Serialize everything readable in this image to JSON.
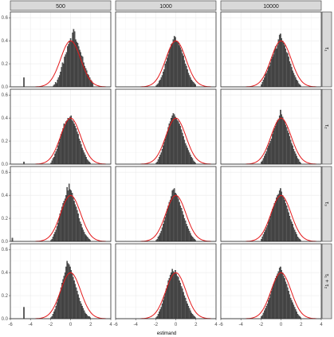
{
  "chart_data": {
    "type": "bar",
    "subtype": "faceted histogram with normal density overlay",
    "xlabel": "estimand",
    "ylabel": "",
    "col_facets": [
      "500",
      "1000",
      "10000"
    ],
    "row_facets": [
      "τ₁",
      "τ₂",
      "τ₃",
      "τ₁ + τ₂"
    ],
    "xlim": [
      -6,
      4
    ],
    "ylim": [
      0,
      0.65
    ],
    "x_ticks": [
      -6,
      -4,
      -2,
      0,
      2,
      4
    ],
    "y_ticks": [
      0.0,
      0.2,
      0.4,
      0.6
    ],
    "y_tick_labels": [
      "0.0",
      "0.2",
      "0.4",
      "0.6"
    ],
    "grid": true,
    "colors": {
      "bar_fill": "#595959",
      "bar_outline": "#1a1a1a",
      "density_curve": "#e41a1c",
      "strip_bg": "#d9d9d9",
      "panel_border": "#333333",
      "grid_major": "#ebebeb"
    },
    "density_overlay": {
      "mean": 0,
      "sd": 1
    },
    "panels": [
      {
        "row": 0,
        "col": 0,
        "x0": -1.75,
        "bw": 0.1,
        "values": [
          0.01,
          0.02,
          0.04,
          0.03,
          0.06,
          0.08,
          0.1,
          0.13,
          0.17,
          0.21,
          0.2,
          0.26,
          0.28,
          0.3,
          0.35,
          0.37,
          0.4,
          0.42,
          0.39,
          0.47,
          0.5,
          0.48,
          0.41,
          0.39,
          0.38,
          0.35,
          0.32,
          0.3,
          0.27,
          0.26,
          0.21,
          0.18,
          0.16,
          0.14,
          0.11,
          0.1,
          0.08,
          0.06,
          0.05,
          0.03
        ],
        "outliers": [
          {
            "x": -4.65,
            "y": 0.08
          }
        ]
      },
      {
        "row": 0,
        "col": 1,
        "x0": -2.0,
        "bw": 0.1,
        "values": [
          0.01,
          0.02,
          0.03,
          0.05,
          0.06,
          0.08,
          0.1,
          0.13,
          0.15,
          0.2,
          0.22,
          0.25,
          0.28,
          0.32,
          0.34,
          0.37,
          0.38,
          0.41,
          0.44,
          0.43,
          0.4,
          0.39,
          0.38,
          0.36,
          0.34,
          0.32,
          0.29,
          0.27,
          0.23,
          0.2,
          0.18,
          0.15,
          0.12,
          0.1,
          0.08,
          0.06,
          0.05,
          0.04,
          0.03,
          0.02
        ],
        "outliers": []
      },
      {
        "row": 0,
        "col": 2,
        "x0": -2.0,
        "bw": 0.1,
        "values": [
          0.02,
          0.04,
          0.06,
          0.08,
          0.11,
          0.12,
          0.14,
          0.17,
          0.18,
          0.21,
          0.24,
          0.26,
          0.28,
          0.32,
          0.35,
          0.33,
          0.36,
          0.41,
          0.45,
          0.46,
          0.42,
          0.4,
          0.38,
          0.36,
          0.33,
          0.3,
          0.29,
          0.26,
          0.22,
          0.2,
          0.17,
          0.14,
          0.12,
          0.1,
          0.08,
          0.06,
          0.05,
          0.03,
          0.02,
          0.01
        ],
        "outliers": []
      },
      {
        "row": 1,
        "col": 0,
        "x0": -2.0,
        "bw": 0.1,
        "values": [
          0.01,
          0.03,
          0.05,
          0.06,
          0.09,
          0.11,
          0.13,
          0.16,
          0.19,
          0.22,
          0.26,
          0.28,
          0.31,
          0.35,
          0.34,
          0.37,
          0.38,
          0.4,
          0.39,
          0.41,
          0.42,
          0.38,
          0.37,
          0.35,
          0.33,
          0.31,
          0.28,
          0.26,
          0.22,
          0.2,
          0.17,
          0.14,
          0.12,
          0.1,
          0.08,
          0.06,
          0.04,
          0.03,
          0.02,
          0.01
        ],
        "outliers": [
          {
            "x": -4.65,
            "y": 0.02
          }
        ]
      },
      {
        "row": 1,
        "col": 1,
        "x0": -2.0,
        "bw": 0.1,
        "values": [
          0.01,
          0.02,
          0.04,
          0.06,
          0.08,
          0.1,
          0.13,
          0.16,
          0.19,
          0.22,
          0.25,
          0.28,
          0.32,
          0.35,
          0.37,
          0.4,
          0.42,
          0.44,
          0.43,
          0.41,
          0.4,
          0.38,
          0.37,
          0.35,
          0.33,
          0.3,
          0.27,
          0.24,
          0.21,
          0.18,
          0.16,
          0.14,
          0.12,
          0.1,
          0.08,
          0.06,
          0.05,
          0.03,
          0.02,
          0.01
        ],
        "outliers": []
      },
      {
        "row": 1,
        "col": 2,
        "x0": -2.0,
        "bw": 0.1,
        "values": [
          0.02,
          0.03,
          0.05,
          0.07,
          0.09,
          0.11,
          0.14,
          0.16,
          0.18,
          0.2,
          0.22,
          0.26,
          0.29,
          0.31,
          0.33,
          0.36,
          0.38,
          0.39,
          0.42,
          0.47,
          0.43,
          0.41,
          0.38,
          0.37,
          0.34,
          0.32,
          0.29,
          0.27,
          0.24,
          0.21,
          0.18,
          0.16,
          0.13,
          0.11,
          0.09,
          0.07,
          0.05,
          0.04,
          0.02,
          0.01
        ],
        "outliers": []
      },
      {
        "row": 2,
        "col": 0,
        "x0": -2.0,
        "bw": 0.1,
        "values": [
          0.01,
          0.02,
          0.04,
          0.06,
          0.08,
          0.1,
          0.13,
          0.16,
          0.2,
          0.24,
          0.27,
          0.3,
          0.33,
          0.35,
          0.37,
          0.4,
          0.47,
          0.44,
          0.5,
          0.45,
          0.44,
          0.42,
          0.38,
          0.35,
          0.32,
          0.3,
          0.27,
          0.24,
          0.2,
          0.17,
          0.15,
          0.12,
          0.1,
          0.08,
          0.06,
          0.05,
          0.04,
          0.03,
          0.02,
          0.01
        ],
        "outliers": [
          {
            "x": -5.8,
            "y": 0.03
          }
        ]
      },
      {
        "row": 2,
        "col": 1,
        "x0": -2.0,
        "bw": 0.1,
        "values": [
          0.01,
          0.02,
          0.04,
          0.05,
          0.07,
          0.09,
          0.12,
          0.15,
          0.18,
          0.21,
          0.24,
          0.28,
          0.31,
          0.34,
          0.36,
          0.39,
          0.44,
          0.45,
          0.46,
          0.42,
          0.41,
          0.39,
          0.37,
          0.34,
          0.31,
          0.29,
          0.26,
          0.23,
          0.2,
          0.18,
          0.15,
          0.13,
          0.11,
          0.09,
          0.07,
          0.05,
          0.04,
          0.03,
          0.02,
          0.01
        ],
        "outliers": []
      },
      {
        "row": 2,
        "col": 2,
        "x0": -2.0,
        "bw": 0.1,
        "values": [
          0.02,
          0.04,
          0.06,
          0.08,
          0.1,
          0.12,
          0.14,
          0.17,
          0.19,
          0.22,
          0.25,
          0.28,
          0.3,
          0.33,
          0.35,
          0.38,
          0.4,
          0.41,
          0.44,
          0.46,
          0.43,
          0.4,
          0.38,
          0.36,
          0.33,
          0.31,
          0.28,
          0.25,
          0.22,
          0.19,
          0.17,
          0.15,
          0.12,
          0.1,
          0.08,
          0.06,
          0.04,
          0.03,
          0.02,
          0.01
        ],
        "outliers": []
      },
      {
        "row": 3,
        "col": 0,
        "x0": -2.0,
        "bw": 0.1,
        "values": [
          0.01,
          0.02,
          0.04,
          0.06,
          0.08,
          0.11,
          0.14,
          0.17,
          0.2,
          0.23,
          0.27,
          0.31,
          0.34,
          0.37,
          0.4,
          0.45,
          0.5,
          0.48,
          0.47,
          0.45,
          0.42,
          0.39,
          0.36,
          0.33,
          0.3,
          0.27,
          0.24,
          0.21,
          0.18,
          0.15,
          0.13,
          0.11,
          0.09,
          0.07,
          0.05,
          0.04,
          0.03,
          0.02,
          0.02,
          0.01
        ],
        "outliers": [
          {
            "x": -4.65,
            "y": 0.1
          }
        ]
      },
      {
        "row": 3,
        "col": 1,
        "x0": -2.0,
        "bw": 0.1,
        "values": [
          0.01,
          0.02,
          0.04,
          0.06,
          0.08,
          0.1,
          0.13,
          0.16,
          0.19,
          0.22,
          0.26,
          0.29,
          0.33,
          0.35,
          0.38,
          0.4,
          0.43,
          0.41,
          0.4,
          0.42,
          0.39,
          0.37,
          0.36,
          0.33,
          0.31,
          0.28,
          0.26,
          0.23,
          0.2,
          0.18,
          0.15,
          0.13,
          0.11,
          0.09,
          0.07,
          0.05,
          0.04,
          0.03,
          0.02,
          0.01
        ],
        "outliers": []
      },
      {
        "row": 3,
        "col": 2,
        "x0": -2.0,
        "bw": 0.1,
        "values": [
          0.02,
          0.03,
          0.05,
          0.07,
          0.09,
          0.11,
          0.13,
          0.16,
          0.18,
          0.21,
          0.24,
          0.27,
          0.3,
          0.32,
          0.35,
          0.37,
          0.39,
          0.41,
          0.44,
          0.45,
          0.42,
          0.4,
          0.37,
          0.35,
          0.32,
          0.3,
          0.27,
          0.24,
          0.21,
          0.18,
          0.16,
          0.14,
          0.12,
          0.1,
          0.08,
          0.06,
          0.04,
          0.03,
          0.02,
          0.01
        ],
        "outliers": []
      }
    ]
  }
}
